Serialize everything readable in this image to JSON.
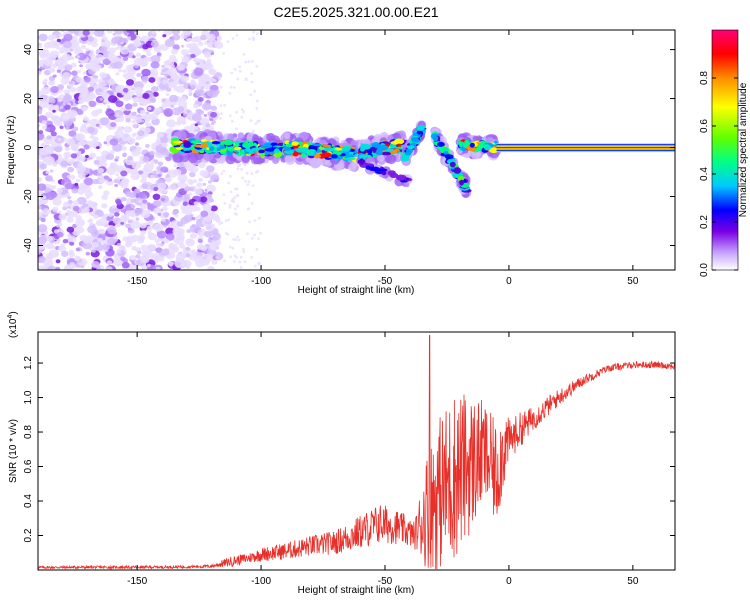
{
  "title": "C2E5.2025.321.00.00.E21",
  "chart_data": [
    {
      "type": "heatmap",
      "name": "spectrogram",
      "title": "C2E5.2025.321.00.00.E21",
      "xlabel": "Height of straight line (km)",
      "ylabel": "Frequency (Hz)",
      "xlim": [
        -190,
        67
      ],
      "ylim": [
        -50,
        48
      ],
      "x_ticks": [
        -150,
        -100,
        -50,
        0,
        50
      ],
      "y_ticks": [
        -40,
        -20,
        0,
        20,
        40
      ],
      "colorbar": {
        "label": "Normalized spectral amplitude",
        "range": [
          0,
          1
        ],
        "ticks": [
          0.0,
          0.2,
          0.4,
          0.6,
          0.8
        ],
        "tick_labels": [
          "0.0",
          "0.2",
          "0.4",
          "0.6",
          "0.8"
        ],
        "colormap": [
          "#ffffff",
          "#c9a6ff",
          "#7a00e6",
          "#0000ff",
          "#00c8ff",
          "#00ff88",
          "#60ff00",
          "#ffff00",
          "#ff8c00",
          "#ff0000",
          "#ff0078"
        ]
      },
      "features": {
        "noise_region_x": [
          -190,
          -117
        ],
        "sparse_region_x": [
          -117,
          -100
        ],
        "main_band_x": [
          -135,
          -5
        ],
        "main_band_freq_hz": 0,
        "branch_down_x": [
          -30,
          -17
        ],
        "branch_down_freq_hz": [
          5,
          -17
        ],
        "branch_up_x": [
          -42,
          -35
        ],
        "branch_up_freq_hz": [
          -4,
          8
        ],
        "tail_x": [
          -5,
          67
        ],
        "tail_freq_hz": 0
      }
    },
    {
      "type": "line",
      "name": "snr",
      "xlabel": "Height of straight line (km)",
      "ylabel": "SNR (10 * v/v)",
      "y_multiplier": "(x10^4)",
      "y_multiplier_base": "(x10",
      "y_multiplier_exp": "4",
      "y_multiplier_close": ")",
      "xlim": [
        -190,
        67
      ],
      "ylim": [
        0,
        1.38
      ],
      "x_ticks": [
        -150,
        -100,
        -50,
        0,
        50
      ],
      "y_ticks": [
        0.2,
        0.4,
        0.6,
        0.8,
        1.0,
        1.2
      ],
      "y_tick_labels": [
        "0.2",
        "0.4",
        "0.6",
        "0.8",
        "1.0",
        "1.2"
      ],
      "color": "#e8302a",
      "x": [
        -190,
        -170,
        -150,
        -130,
        -120,
        -112,
        -105,
        -100,
        -90,
        -80,
        -70,
        -60,
        -52,
        -45,
        -38,
        -33,
        -28,
        -22,
        -15,
        -10,
        -5,
        -2,
        0,
        5,
        10,
        20,
        30,
        40,
        50,
        60,
        67
      ],
      "mean": [
        0.015,
        0.016,
        0.016,
        0.018,
        0.022,
        0.05,
        0.07,
        0.09,
        0.11,
        0.14,
        0.16,
        0.22,
        0.27,
        0.25,
        0.2,
        0.35,
        0.45,
        0.55,
        0.62,
        0.68,
        0.55,
        0.72,
        0.75,
        0.82,
        0.88,
        1.0,
        1.1,
        1.17,
        1.19,
        1.19,
        1.18
      ],
      "amp": [
        0.008,
        0.008,
        0.008,
        0.008,
        0.01,
        0.03,
        0.03,
        0.04,
        0.05,
        0.06,
        0.07,
        0.1,
        0.12,
        0.1,
        0.08,
        0.35,
        0.45,
        0.5,
        0.4,
        0.3,
        0.3,
        0.25,
        0.12,
        0.1,
        0.07,
        0.05,
        0.03,
        0.02,
        0.02,
        0.02,
        0.02
      ],
      "peak": {
        "x": -32,
        "y": 1.36
      }
    }
  ]
}
